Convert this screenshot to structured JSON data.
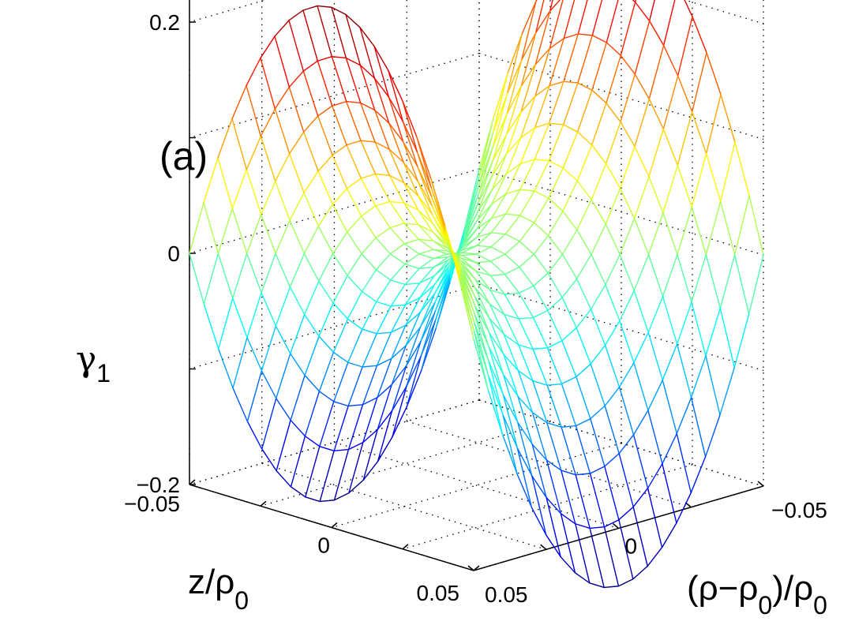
{
  "chart_data": {
    "type": "surface-mesh",
    "panel_label": "(a)",
    "x_axis": {
      "label": "(ρ−ρ0)/ρ0",
      "label_main": "(ρ−ρ",
      "label_sub": "0",
      "label_tail": ")/ρ",
      "label_sub2": "0",
      "range": [
        -0.05,
        0.05
      ],
      "ticks": [
        -0.05,
        0,
        0.05
      ],
      "tick_labels": [
        "−0.05",
        "0",
        "0.05"
      ]
    },
    "y_axis": {
      "label": "z/ρ0",
      "label_main": "z/ρ",
      "label_sub": "0",
      "range": [
        -0.05,
        0.05
      ],
      "ticks": [
        -0.05,
        0,
        0.05
      ],
      "tick_labels": [
        "−0.05",
        "0",
        "0.05"
      ]
    },
    "z_axis": {
      "label": "γ1",
      "label_main": "γ",
      "label_sub": "1",
      "range": [
        -0.2,
        0.25
      ],
      "ticks": [
        -0.2,
        -0.1,
        0,
        0.1,
        0.2
      ],
      "tick_labels": [
        "−0.2",
        "",
        "0",
        "",
        "0.2"
      ]
    },
    "surface": {
      "description_of_values": "saddle surface gamma1 = 100*x^2 - 100*z^2 sampled on a 21x21 grid",
      "coef_x2": 100,
      "coef_z2": -100,
      "x": [
        -0.05,
        -0.045,
        -0.04,
        -0.035,
        -0.03,
        -0.025,
        -0.02,
        -0.015,
        -0.01,
        -0.005,
        0,
        0.005,
        0.01,
        0.015,
        0.02,
        0.025,
        0.03,
        0.035,
        0.04,
        0.045,
        0.05
      ],
      "y": [
        -0.05,
        -0.045,
        -0.04,
        -0.035,
        -0.03,
        -0.025,
        -0.02,
        -0.015,
        -0.01,
        -0.005,
        0,
        0.005,
        0.01,
        0.015,
        0.02,
        0.025,
        0.03,
        0.035,
        0.04,
        0.045,
        0.05
      ],
      "z_at_corners": {
        "x=±0.05,z=0": 0.25,
        "x=0,z=±0.05": -0.25,
        "center": 0
      },
      "colormap": "jet",
      "color_limits": [
        -0.25,
        0.25
      ]
    },
    "grid": true,
    "view": "3d, azimuth 45°, elevation ~30°"
  }
}
